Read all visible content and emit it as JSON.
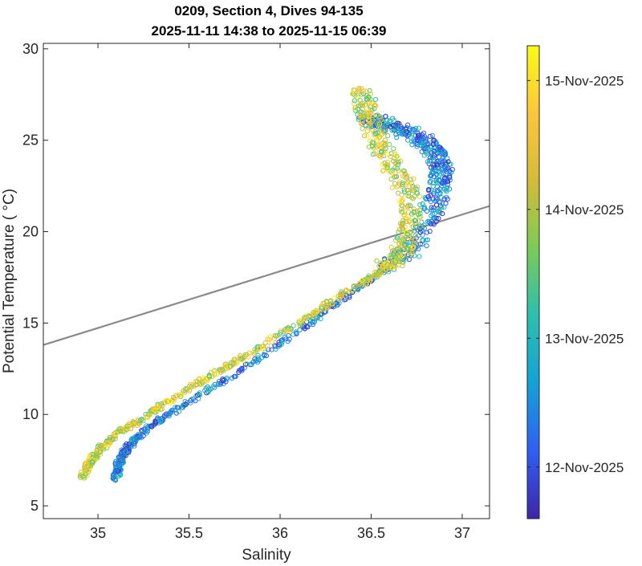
{
  "chart_data": {
    "type": "scatter",
    "title": "0209, Section 4, Dives 94-135",
    "subtitle": "2025-11-11 14:38 to 2025-11-15 06:39",
    "xlabel": "Salinity",
    "ylabel": "Potential Temperature ( °C)",
    "xlim": [
      34.7,
      37.15
    ],
    "ylim": [
      4.3,
      30.3
    ],
    "xticks": [
      35,
      35.5,
      36,
      36.5,
      37
    ],
    "xtick_labels": [
      "35",
      "35.5",
      "36",
      "36.5",
      "37"
    ],
    "yticks": [
      5,
      10,
      15,
      20,
      25,
      30
    ],
    "ytick_labels": [
      "5",
      "10",
      "15",
      "20",
      "25",
      "30"
    ],
    "grid": false,
    "background_contours": "density isopycnals (thin gray), one highlighted isopycnal (thick gray)",
    "colorbar": {
      "label_dates": [
        "12-Nov-2025",
        "13-Nov-2025",
        "14-Nov-2025",
        "15-Nov-2025"
      ],
      "range_days": [
        0,
        3.67
      ],
      "tick_days": [
        0.4,
        1.4,
        2.4,
        3.4
      ],
      "colormap": "parula",
      "colors": [
        "#3e26a8",
        "#2f5ff6",
        "#14a2d7",
        "#2bbfae",
        "#7bcb57",
        "#d4bb36",
        "#fcc63c",
        "#f9fb15"
      ]
    },
    "marker": "open-circle",
    "series": [
      {
        "time_range_days": [
          0.0,
          1.6
        ],
        "description": "early dives (blue)",
        "trace": [
          [
            35.1,
            6.5
          ],
          [
            35.11,
            7.2
          ],
          [
            35.15,
            8.0
          ],
          [
            35.22,
            8.8
          ],
          [
            35.35,
            9.8
          ],
          [
            35.55,
            11.0
          ],
          [
            35.8,
            12.5
          ],
          [
            36.05,
            14.2
          ],
          [
            36.3,
            16.0
          ],
          [
            36.55,
            17.8
          ],
          [
            36.7,
            18.8
          ],
          [
            36.78,
            20.0
          ],
          [
            36.85,
            21.5
          ],
          [
            36.88,
            22.7
          ],
          [
            36.89,
            23.5
          ],
          [
            36.86,
            24.3
          ],
          [
            36.78,
            25.0
          ],
          [
            36.68,
            25.5
          ],
          [
            36.55,
            26.0
          ],
          [
            36.47,
            26.1
          ]
        ]
      },
      {
        "time_range_days": [
          1.6,
          3.67
        ],
        "description": "later dives (green to yellow)",
        "trace": [
          [
            34.92,
            6.6
          ],
          [
            34.95,
            7.3
          ],
          [
            35.0,
            8.0
          ],
          [
            35.1,
            8.9
          ],
          [
            35.25,
            9.8
          ],
          [
            35.4,
            10.8
          ],
          [
            35.6,
            12.0
          ],
          [
            35.85,
            13.4
          ],
          [
            36.1,
            15.0
          ],
          [
            36.35,
            16.6
          ],
          [
            36.55,
            17.8
          ],
          [
            36.65,
            18.6
          ],
          [
            36.7,
            19.7
          ],
          [
            36.72,
            21.0
          ],
          [
            36.7,
            22.3
          ],
          [
            36.62,
            23.5
          ],
          [
            36.55,
            24.8
          ],
          [
            36.5,
            26.0
          ],
          [
            36.47,
            26.9
          ],
          [
            36.45,
            27.8
          ]
        ]
      }
    ]
  }
}
